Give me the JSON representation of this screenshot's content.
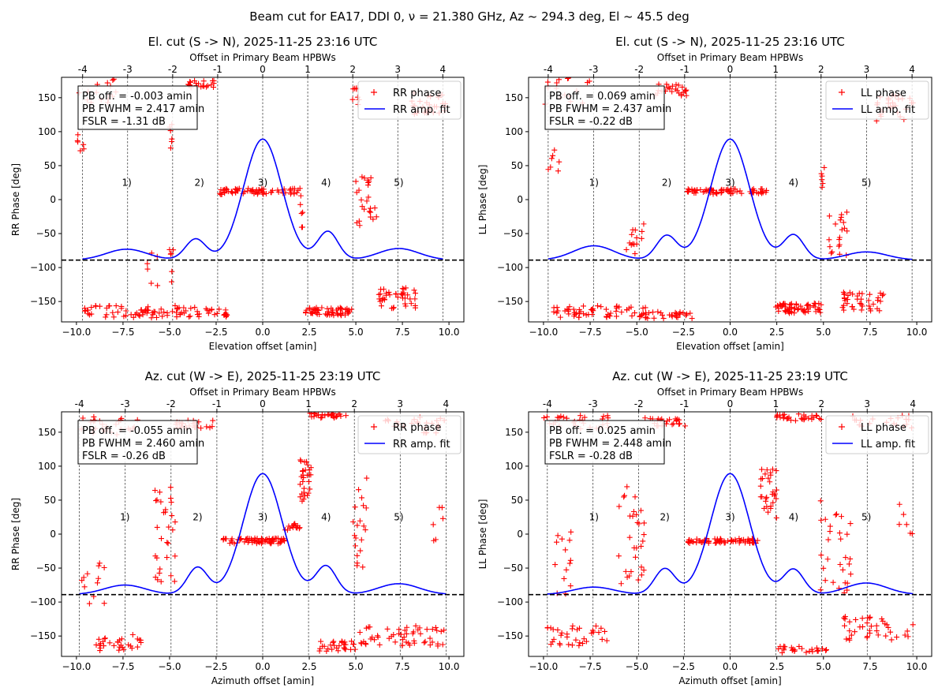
{
  "figure": {
    "suptitle": "Beam cut for EA17, DDI 0, ν = 21.380 GHz, Az ~ 294.3 deg, El ~ 45.5 deg"
  },
  "colors": {
    "phase": "#ff0000",
    "fit": "#0000ff",
    "axis": "#000000"
  },
  "chart_data": [
    {
      "type": "scatter",
      "title": "El. cut (S -> N), 2025-11-25 23:16 UTC",
      "xlabel": "Elevation offset [amin]",
      "ylabel": "RR Phase [deg]",
      "top_xlabel": "Offset in Primary Beam HPBWs",
      "xlim": [
        -10.8,
        10.8
      ],
      "ylim": [
        -180,
        180
      ],
      "xticks": [
        -10.0,
        -7.5,
        -5.0,
        -2.5,
        0.0,
        2.5,
        5.0,
        7.5,
        10.0
      ],
      "xtick_labels": [
        "−10.0",
        "−7.5",
        "−5.0",
        "−2.5",
        "0.0",
        "2.5",
        "5.0",
        "7.5",
        "10.0"
      ],
      "yticks": [
        -150,
        -100,
        -50,
        0,
        50,
        100,
        150
      ],
      "ytick_labels": [
        "−150",
        "−100",
        "−50",
        "0",
        "50",
        "100",
        "150"
      ],
      "hpbw": 2.417,
      "top_ticks": [
        -4,
        -3,
        -2,
        -1,
        0,
        1,
        2,
        3,
        4
      ],
      "top_tick_labels": [
        "-4",
        "-3",
        "-2",
        "-1",
        "0",
        "1",
        "2",
        "3",
        "4"
      ],
      "baseline_y": -89,
      "amp_fit": {
        "peak": 89,
        "sidelobes": [
          [
            -7.3,
            16
          ],
          [
            -3.6,
            31
          ],
          [
            3.5,
            42
          ],
          [
            7.3,
            17
          ]
        ]
      },
      "region_labels": [
        {
          "text": "1)",
          "x": -7.3
        },
        {
          "text": "2)",
          "x": -3.4
        },
        {
          "text": "3)",
          "x": 0.0
        },
        {
          "text": "4)",
          "x": 3.4
        },
        {
          "text": "5)",
          "x": 7.3
        }
      ],
      "region_label_y": 25,
      "info_lines": [
        "PB off. = -0.003 amin",
        "PB FWHM = 2.417 amin",
        "FSLR = -1.31 dB"
      ],
      "legend": [
        "RR phase",
        "RR amp. fit"
      ],
      "legend_position": "upper right",
      "phase_groups": [
        {
          "x0": -10.0,
          "x1": -7.6,
          "y": 160,
          "spread": 40,
          "n": 16
        },
        {
          "x0": -10.0,
          "x1": -9.4,
          "y": 80,
          "spread": 40,
          "n": 6
        },
        {
          "x0": -9.7,
          "x1": -4.6,
          "y": -165,
          "spread": 18,
          "n": 60
        },
        {
          "x0": -6.2,
          "x1": -4.8,
          "y": -100,
          "spread": 60,
          "n": 12
        },
        {
          "x0": -5.2,
          "x1": -4.8,
          "y": 90,
          "spread": 80,
          "n": 6
        },
        {
          "x0": -4.8,
          "x1": -1.8,
          "y": -165,
          "spread": 15,
          "n": 35
        },
        {
          "x0": -4.0,
          "x1": -2.6,
          "y": 170,
          "spread": 10,
          "n": 22
        },
        {
          "x0": -2.4,
          "x1": 2.0,
          "y": 12,
          "spread": 9,
          "n": 70
        },
        {
          "x0": 2.0,
          "x1": 2.3,
          "y": -20,
          "spread": 60,
          "n": 6
        },
        {
          "x0": 2.3,
          "x1": 4.8,
          "y": -165,
          "spread": 12,
          "n": 55
        },
        {
          "x0": 4.8,
          "x1": 5.2,
          "y": 150,
          "spread": 30,
          "n": 8
        },
        {
          "x0": 5.0,
          "x1": 6.2,
          "y": 0,
          "spread": 80,
          "n": 25
        },
        {
          "x0": 6.2,
          "x1": 8.2,
          "y": -145,
          "spread": 30,
          "n": 40
        },
        {
          "x0": 8.0,
          "x1": 9.8,
          "y": 140,
          "spread": 35,
          "n": 30
        }
      ]
    },
    {
      "type": "scatter",
      "title": "El. cut (S -> N), 2025-11-25 23:16 UTC",
      "xlabel": "Elevation offset [amin]",
      "ylabel": "LL Phase [deg]",
      "top_xlabel": "Offset in Primary Beam HPBWs",
      "xlim": [
        -10.8,
        10.8
      ],
      "ylim": [
        -180,
        180
      ],
      "xticks": [
        -10.0,
        -7.5,
        -5.0,
        -2.5,
        0.0,
        2.5,
        5.0,
        7.5,
        10.0
      ],
      "xtick_labels": [
        "−10.0",
        "−7.5",
        "−5.0",
        "−2.5",
        "0.0",
        "2.5",
        "5.0",
        "7.5",
        "10.0"
      ],
      "yticks": [
        -150,
        -100,
        -50,
        0,
        50,
        100,
        150
      ],
      "ytick_labels": [
        "−150",
        "−100",
        "−50",
        "0",
        "50",
        "100",
        "150"
      ],
      "hpbw": 2.437,
      "top_ticks": [
        -4,
        -3,
        -2,
        -1,
        0,
        1,
        2,
        3,
        4
      ],
      "top_tick_labels": [
        "-4",
        "-3",
        "-2",
        "-1",
        "0",
        "1",
        "2",
        "3",
        "4"
      ],
      "baseline_y": -89,
      "amp_fit": {
        "peak": 89,
        "sidelobes": [
          [
            -7.3,
            21
          ],
          [
            -3.4,
            36
          ],
          [
            3.4,
            37
          ],
          [
            7.3,
            12
          ]
        ]
      },
      "region_labels": [
        {
          "text": "1)",
          "x": -7.3
        },
        {
          "text": "2)",
          "x": -3.4
        },
        {
          "text": "3)",
          "x": 0.0
        },
        {
          "text": "4)",
          "x": 3.4
        },
        {
          "text": "5)",
          "x": 7.3
        }
      ],
      "region_label_y": 25,
      "info_lines": [
        "PB off. = 0.069 amin",
        "PB FWHM = 2.437 amin",
        "FSLR = -0.22 dB"
      ],
      "legend": [
        "LL phase",
        "LL amp. fit"
      ],
      "legend_position": "upper right",
      "phase_groups": [
        {
          "x0": -10.0,
          "x1": -7.5,
          "y": 160,
          "spread": 40,
          "n": 16
        },
        {
          "x0": -10.0,
          "x1": -9.0,
          "y": 60,
          "spread": 40,
          "n": 7
        },
        {
          "x0": -9.5,
          "x1": -4.5,
          "y": -165,
          "spread": 18,
          "n": 60
        },
        {
          "x0": -5.6,
          "x1": -4.6,
          "y": -60,
          "spread": 50,
          "n": 14
        },
        {
          "x0": -4.8,
          "x1": -2.0,
          "y": -170,
          "spread": 10,
          "n": 30
        },
        {
          "x0": -4.0,
          "x1": -2.3,
          "y": 160,
          "spread": 20,
          "n": 25
        },
        {
          "x0": -2.3,
          "x1": 2.0,
          "y": 12,
          "spread": 8,
          "n": 70
        },
        {
          "x0": 2.3,
          "x1": 5.0,
          "y": -160,
          "spread": 15,
          "n": 60
        },
        {
          "x0": 4.8,
          "x1": 5.2,
          "y": 30,
          "spread": 40,
          "n": 6
        },
        {
          "x0": 5.2,
          "x1": 6.3,
          "y": -50,
          "spread": 70,
          "n": 20
        },
        {
          "x0": 6.0,
          "x1": 8.3,
          "y": -150,
          "spread": 30,
          "n": 40
        },
        {
          "x0": 7.8,
          "x1": 9.8,
          "y": 135,
          "spread": 40,
          "n": 30
        }
      ]
    },
    {
      "type": "scatter",
      "title": "Az. cut (W -> E), 2025-11-25 23:19 UTC",
      "xlabel": "Azimuth offset [amin]",
      "ylabel": "RR Phase [deg]",
      "top_xlabel": "Offset in Primary Beam HPBWs",
      "xlim": [
        -10.8,
        10.8
      ],
      "ylim": [
        -180,
        180
      ],
      "xticks": [
        -10.0,
        -7.5,
        -5.0,
        -2.5,
        0.0,
        2.5,
        5.0,
        7.5,
        10.0
      ],
      "xtick_labels": [
        "−10.0",
        "−7.5",
        "−5.0",
        "−2.5",
        "0.0",
        "2.5",
        "5.0",
        "7.5",
        "10.0"
      ],
      "yticks": [
        -150,
        -100,
        -50,
        0,
        50,
        100,
        150
      ],
      "ytick_labels": [
        "−150",
        "−100",
        "−50",
        "0",
        "50",
        "100",
        "150"
      ],
      "hpbw": 2.46,
      "top_ticks": [
        -4,
        -3,
        -2,
        -1,
        0,
        1,
        2,
        3,
        4
      ],
      "top_tick_labels": [
        "-4",
        "-3",
        "-2",
        "-1",
        "0",
        "1",
        "2",
        "3",
        "4"
      ],
      "baseline_y": -89,
      "amp_fit": {
        "peak": 89,
        "sidelobes": [
          [
            -7.4,
            14
          ],
          [
            -3.5,
            40
          ],
          [
            3.4,
            42
          ],
          [
            7.3,
            16
          ]
        ]
      },
      "region_labels": [
        {
          "text": "1)",
          "x": -7.4
        },
        {
          "text": "2)",
          "x": -3.5
        },
        {
          "text": "3)",
          "x": 0.0
        },
        {
          "text": "4)",
          "x": 3.4
        },
        {
          "text": "5)",
          "x": 7.3
        }
      ],
      "region_label_y": 25,
      "info_lines": [
        "PB off. = -0.055 amin",
        "PB FWHM = 2.460 amin",
        "FSLR = -0.26 dB"
      ],
      "legend": [
        "RR phase",
        "RR amp. fit"
      ],
      "legend_position": "upper right",
      "phase_groups": [
        {
          "x0": -10.0,
          "x1": -6.6,
          "y": 160,
          "spread": 30,
          "n": 28
        },
        {
          "x0": -9.8,
          "x1": -8.5,
          "y": -80,
          "spread": 80,
          "n": 12
        },
        {
          "x0": -9.0,
          "x1": -6.5,
          "y": -160,
          "spread": 25,
          "n": 30
        },
        {
          "x0": -5.8,
          "x1": -4.7,
          "y": 0,
          "spread": 150,
          "n": 30
        },
        {
          "x0": -4.7,
          "x1": -2.3,
          "y": 160,
          "spread": 15,
          "n": 25
        },
        {
          "x0": -2.3,
          "x1": 1.2,
          "y": -10,
          "spread": 8,
          "n": 70
        },
        {
          "x0": 1.2,
          "x1": 2.0,
          "y": 10,
          "spread": 12,
          "n": 14
        },
        {
          "x0": 2.0,
          "x1": 2.6,
          "y": 80,
          "spread": 70,
          "n": 30
        },
        {
          "x0": 2.5,
          "x1": 4.5,
          "y": 175,
          "spread": 8,
          "n": 30
        },
        {
          "x0": 3.0,
          "x1": 5.0,
          "y": -165,
          "spread": 15,
          "n": 30
        },
        {
          "x0": 4.8,
          "x1": 5.6,
          "y": 10,
          "spread": 150,
          "n": 20
        },
        {
          "x0": 5.2,
          "x1": 9.8,
          "y": -150,
          "spread": 30,
          "n": 55
        },
        {
          "x0": 6.5,
          "x1": 9.8,
          "y": 160,
          "spread": 25,
          "n": 25
        },
        {
          "x0": 9.0,
          "x1": 9.8,
          "y": 20,
          "spread": 60,
          "n": 6
        }
      ]
    },
    {
      "type": "scatter",
      "title": "Az. cut (W -> E), 2025-11-25 23:19 UTC",
      "xlabel": "Azimuth offset [amin]",
      "ylabel": "LL Phase [deg]",
      "top_xlabel": "Offset in Primary Beam HPBWs",
      "xlim": [
        -10.8,
        10.8
      ],
      "ylim": [
        -180,
        180
      ],
      "xticks": [
        -10.0,
        -7.5,
        -5.0,
        -2.5,
        0.0,
        2.5,
        5.0,
        7.5,
        10.0
      ],
      "xtick_labels": [
        "−10.0",
        "−7.5",
        "−5.0",
        "−2.5",
        "0.0",
        "2.5",
        "5.0",
        "7.5",
        "10.0"
      ],
      "yticks": [
        -150,
        -100,
        -50,
        0,
        50,
        100,
        150
      ],
      "ytick_labels": [
        "−150",
        "−100",
        "−50",
        "0",
        "50",
        "100",
        "150"
      ],
      "hpbw": 2.448,
      "top_ticks": [
        -4,
        -3,
        -2,
        -1,
        0,
        1,
        2,
        3,
        4
      ],
      "top_tick_labels": [
        "-4",
        "-3",
        "-2",
        "-1",
        "0",
        "1",
        "2",
        "3",
        "4"
      ],
      "baseline_y": -89,
      "amp_fit": {
        "peak": 89,
        "sidelobes": [
          [
            -7.3,
            11
          ],
          [
            -3.5,
            38
          ],
          [
            3.4,
            37
          ],
          [
            7.3,
            17
          ]
        ]
      },
      "region_labels": [
        {
          "text": "1)",
          "x": -7.3
        },
        {
          "text": "2)",
          "x": -3.5
        },
        {
          "text": "3)",
          "x": 0.0
        },
        {
          "text": "4)",
          "x": 3.4
        },
        {
          "text": "5)",
          "x": 7.3
        }
      ],
      "region_label_y": 25,
      "info_lines": [
        "PB off. = 0.025 amin",
        "PB FWHM = 2.448 amin",
        "FSLR = -0.28 dB"
      ],
      "legend": [
        "LL phase",
        "LL amp. fit"
      ],
      "legend_position": "upper right",
      "phase_groups": [
        {
          "x0": -10.0,
          "x1": -6.5,
          "y": 165,
          "spread": 20,
          "n": 30
        },
        {
          "x0": -9.8,
          "x1": -8.5,
          "y": -40,
          "spread": 100,
          "n": 14
        },
        {
          "x0": -9.8,
          "x1": -6.5,
          "y": -150,
          "spread": 30,
          "n": 35
        },
        {
          "x0": -6.0,
          "x1": -4.6,
          "y": 0,
          "spread": 150,
          "n": 30
        },
        {
          "x0": -4.7,
          "x1": -2.3,
          "y": 165,
          "spread": 12,
          "n": 25
        },
        {
          "x0": -2.3,
          "x1": 1.5,
          "y": -10,
          "spread": 7,
          "n": 70
        },
        {
          "x0": 1.5,
          "x1": 2.5,
          "y": 60,
          "spread": 80,
          "n": 30
        },
        {
          "x0": 2.5,
          "x1": 5.0,
          "y": 172,
          "spread": 10,
          "n": 30
        },
        {
          "x0": 2.5,
          "x1": 5.2,
          "y": -170,
          "spread": 10,
          "n": 25
        },
        {
          "x0": 4.8,
          "x1": 6.5,
          "y": -20,
          "spread": 140,
          "n": 30
        },
        {
          "x0": 6.0,
          "x1": 9.8,
          "y": -140,
          "spread": 40,
          "n": 40
        },
        {
          "x0": 6.5,
          "x1": 9.8,
          "y": 165,
          "spread": 20,
          "n": 20
        },
        {
          "x0": 9.0,
          "x1": 9.8,
          "y": 20,
          "spread": 50,
          "n": 6
        }
      ]
    }
  ]
}
